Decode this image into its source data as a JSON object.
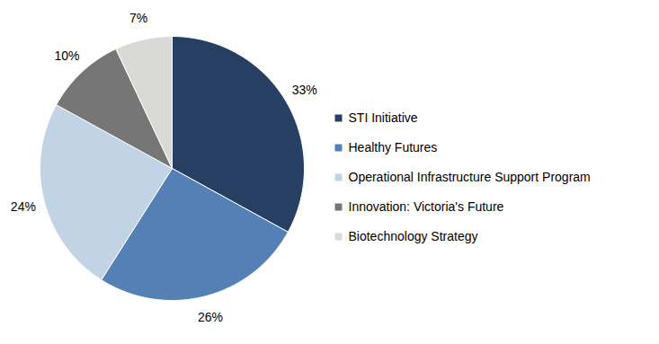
{
  "chart_data": {
    "type": "pie",
    "categories": [
      "STI Initiative",
      "Healthy Futures",
      "Operational Infrastructure Support Program",
      "Innovation: Victoria's Future",
      "Biotechnology Strategy"
    ],
    "values": [
      33,
      26,
      24,
      10,
      7
    ],
    "value_labels": [
      "33%",
      "26%",
      "24%",
      "10%",
      "7%"
    ],
    "colors": [
      "#263f63",
      "#5480b5",
      "#c3d3e6",
      "#767676",
      "#d9d9d6"
    ],
    "data_labels": true,
    "legend": "right"
  }
}
